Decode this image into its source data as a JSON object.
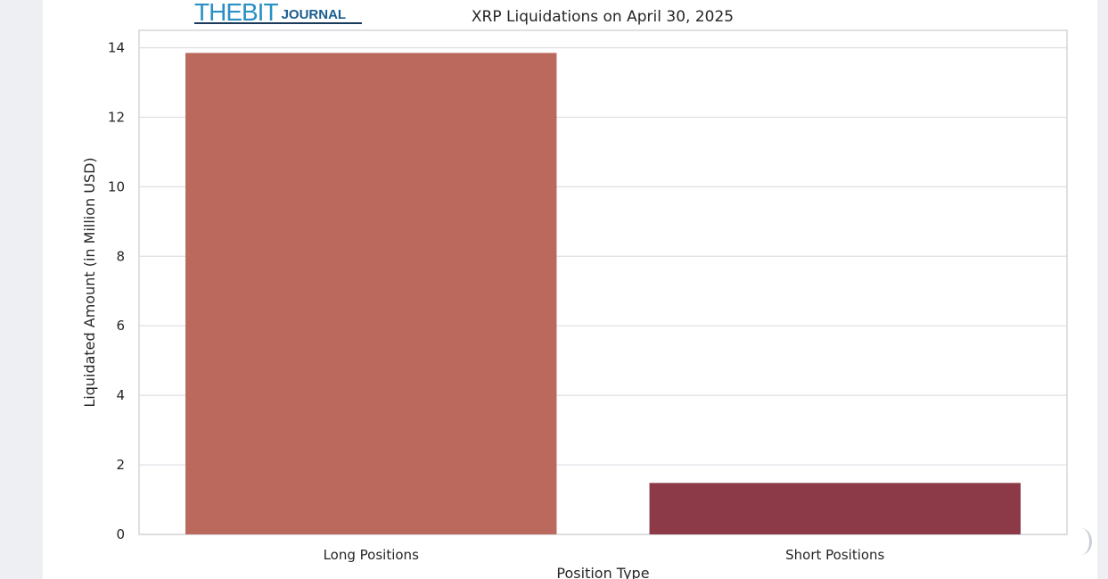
{
  "logo": {
    "main": "THEBIT",
    "sub": "JOURNAL"
  },
  "chart_data": {
    "type": "bar",
    "title": "XRP Liquidations on April 30, 2025",
    "xlabel": "Position Type",
    "ylabel": "Liquidated Amount (in Million USD)",
    "categories": [
      "Long Positions",
      "Short Positions"
    ],
    "values": [
      13.85,
      1.48
    ],
    "colors": [
      "#bb685d",
      "#8d3a48"
    ],
    "ylim": [
      0,
      14.5
    ],
    "yticks": [
      0,
      2,
      4,
      6,
      8,
      10,
      12,
      14
    ],
    "grid": true,
    "legend": "none"
  }
}
